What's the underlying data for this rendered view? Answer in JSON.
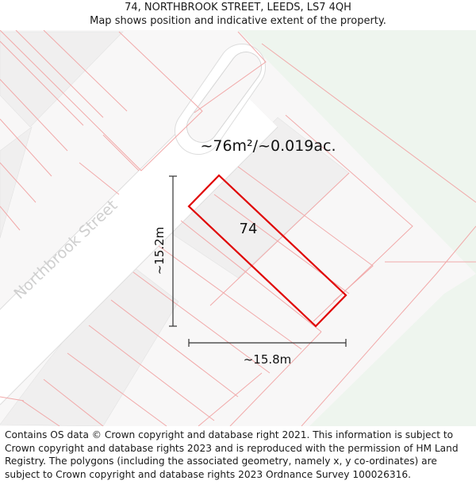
{
  "header": {
    "title": "74, NORTHBROOK STREET, LEEDS, LS7 4QH",
    "subtitle": "Map shows position and indicative extent of the property."
  },
  "map": {
    "area_label": "~76m²/~0.019ac.",
    "plot_number": "74",
    "street_name": "Northbrook Street",
    "height_dimension": "~15.2m",
    "width_dimension": "~15.8m",
    "colors": {
      "background": "#f8f7f7",
      "road": "#ffffff",
      "green_space": "#eef5ee",
      "building": "#f0efef",
      "parcel_line": "#f1a9a9",
      "highlight": "#e00000",
      "dimension_line": "#333333",
      "street_text": "#cfcfcf"
    }
  },
  "footer": {
    "copyright": "Contains OS data © Crown copyright and database right 2021. This information is subject to Crown copyright and database rights 2023 and is reproduced with the permission of HM Land Registry. The polygons (including the associated geometry, namely x, y co-ordinates) are subject to Crown copyright and database rights 2023 Ordnance Survey 100026316."
  }
}
